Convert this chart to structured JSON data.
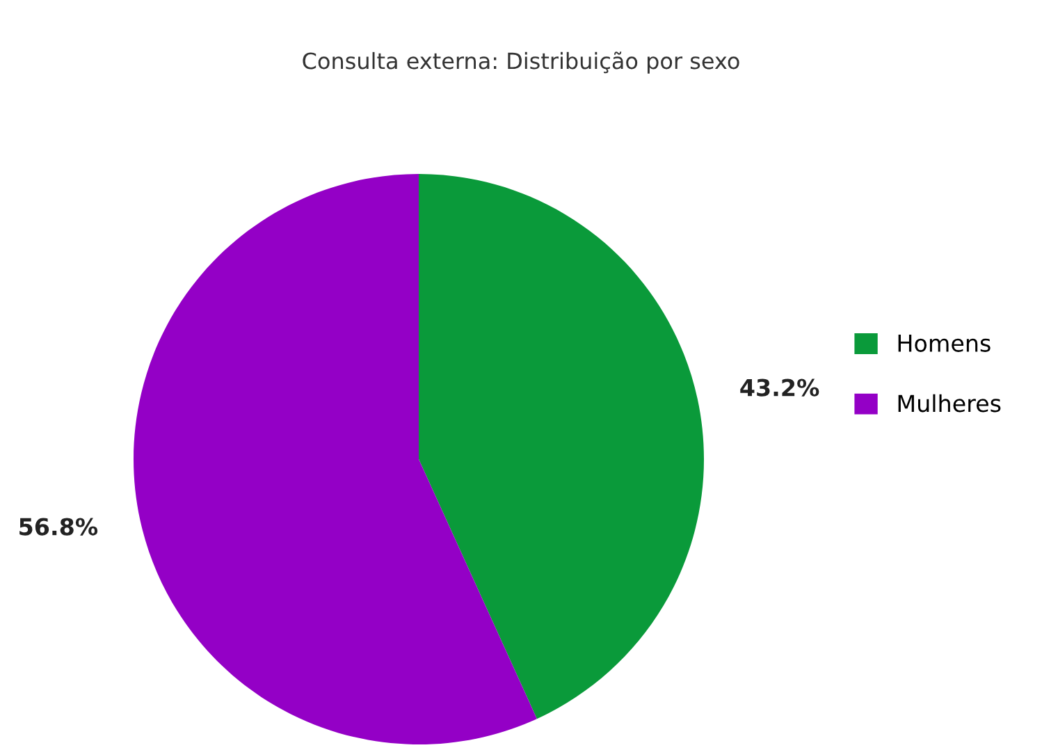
{
  "chart_data": {
    "type": "pie",
    "title": "Consulta externa: Distribuição por sexo",
    "categories": [
      "Homens",
      "Mulheres"
    ],
    "values": [
      43.2,
      56.8
    ],
    "colors": [
      "#0a9a3a",
      "#9400c6"
    ],
    "value_labels": [
      "43.2%",
      "56.8%"
    ],
    "legend": "right"
  }
}
